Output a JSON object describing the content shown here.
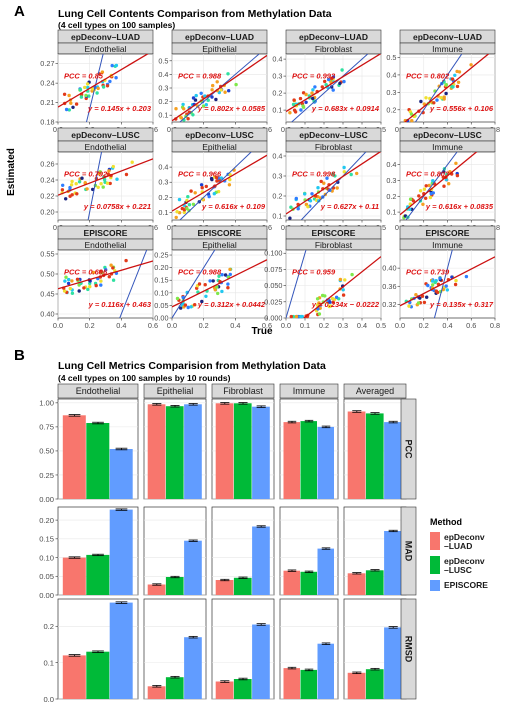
{
  "panel_a": {
    "letter": "A",
    "title": "Lung Cell Contents Comparison from Methylation Data",
    "subtitle": "(4 cell types on 100 samples)",
    "xlabel": "True",
    "ylabel": "Estimated"
  },
  "panel_b": {
    "letter": "B",
    "title": "Lung Cell Metrics Comparision from Methylation Data",
    "subtitle": "(4 cell types on 100 samples by 10 rounds)",
    "legend_title": "Method",
    "legend": [
      {
        "lines": [
          "epDeconv",
          "–LUAD"
        ],
        "color": "#F8766D"
      },
      {
        "lines": [
          "epDeconv",
          "–LUSC"
        ],
        "color": "#00BA38"
      },
      {
        "lines": [
          "EPISCORE"
        ],
        "color": "#619CFF"
      }
    ]
  },
  "colors": {
    "fit_line": "#CC1111",
    "identity_line": "#3355BB",
    "strip_bg": "#D9D9D9",
    "annotation": "#DD1111"
  },
  "chart_data": [
    {
      "type": "scatter",
      "title": "Lung Cell Contents Comparison from Methylation Data",
      "xlabel": "True",
      "ylabel": "Estimated",
      "methods": [
        "epDeconv–LUAD",
        "epDeconv–LUSC",
        "EPISCORE"
      ],
      "cells": [
        "Endothelial",
        "Epithelial",
        "Fibroblast",
        "Immune"
      ],
      "facets": [
        [
          {
            "xlim": [
              0,
              0.6
            ],
            "xticks": [
              "0.0",
              "0.2",
              "0.4",
              "0.6"
            ],
            "ylim": [
              0.18,
              0.285
            ],
            "yticks": [
              "0.18",
              "0.21",
              "0.24",
              "0.27"
            ],
            "pcc": "PCC = 0.85",
            "eq": "y = 0.145x + 0.203",
            "slope": 0.145,
            "intercept": 0.203
          },
          {
            "xlim": [
              0,
              0.6
            ],
            "xticks": [
              "0.0",
              "0.2",
              "0.4",
              "0.6"
            ],
            "ylim": [
              0.05,
              0.55
            ],
            "yticks": [
              "0.1",
              "0.2",
              "0.3",
              "0.4",
              "0.5"
            ],
            "pcc": "PCC = 0.988",
            "eq": "y = 0.802x + 0.0585",
            "slope": 0.802,
            "intercept": 0.0585
          },
          {
            "xlim": [
              0,
              0.5
            ],
            "xticks": [
              "0.0",
              "0.1",
              "0.2",
              "0.3",
              "0.4",
              "0.5"
            ],
            "ylim": [
              0.03,
              0.43
            ],
            "yticks": [
              "0.1",
              "0.2",
              "0.3",
              "0.4"
            ],
            "pcc": "PCC = 0.992",
            "eq": "y = 0.683x + 0.0914",
            "slope": 0.683,
            "intercept": 0.0914
          },
          {
            "xlim": [
              0,
              0.8
            ],
            "xticks": [
              "0.0",
              "0.2",
              "0.4",
              "0.6",
              "0.8"
            ],
            "ylim": [
              0.13,
              0.52
            ],
            "yticks": [
              "0.2",
              "0.3",
              "0.4",
              "0.5"
            ],
            "pcc": "PCC = 0.802",
            "eq": "y = 0.556x + 0.106",
            "slope": 0.556,
            "intercept": 0.106
          }
        ],
        [
          {
            "xlim": [
              0,
              0.6
            ],
            "xticks": [
              "0.0",
              "0.2",
              "0.4",
              "0.6"
            ],
            "ylim": [
              0.19,
              0.275
            ],
            "yticks": [
              "0.20",
              "0.22",
              "0.24",
              "0.26"
            ],
            "pcc": "PCC = 0.792",
            "eq": "y = 0.0758x + 0.221",
            "slope": 0.0758,
            "intercept": 0.221
          },
          {
            "xlim": [
              0,
              0.6
            ],
            "xticks": [
              "0.0",
              "0.2",
              "0.4",
              "0.6"
            ],
            "ylim": [
              0.05,
              0.5
            ],
            "yticks": [
              "0.1",
              "0.2",
              "0.3",
              "0.4"
            ],
            "pcc": "PCC = 0.966",
            "eq": "y = 0.616x + 0.109",
            "slope": 0.616,
            "intercept": 0.109
          },
          {
            "xlim": [
              0,
              0.5
            ],
            "xticks": [
              "0.0",
              "0.1",
              "0.2",
              "0.3",
              "0.4",
              "0.5"
            ],
            "ylim": [
              0.08,
              0.42
            ],
            "yticks": [
              "0.1",
              "0.2",
              "0.3",
              "0.4"
            ],
            "pcc": "PCC = 0.998",
            "eq": "y = 0.627x + 0.11",
            "slope": 0.627,
            "intercept": 0.11
          },
          {
            "xlim": [
              0,
              0.8
            ],
            "xticks": [
              "0.0",
              "0.2",
              "0.4",
              "0.6",
              "0.8"
            ],
            "ylim": [
              0.05,
              0.48
            ],
            "yticks": [
              "0.1",
              "0.2",
              "0.3",
              "0.4"
            ],
            "pcc": "PCC = 0.803",
            "eq": "y = 0.616x + 0.0835",
            "slope": 0.616,
            "intercept": 0.0835
          }
        ],
        [
          {
            "xlim": [
              0,
              0.6
            ],
            "xticks": [
              "0.0",
              "0.2",
              "0.4",
              "0.6"
            ],
            "ylim": [
              0.39,
              0.56
            ],
            "yticks": [
              "0.40",
              "0.45",
              "0.50",
              "0.55"
            ],
            "pcc": "PCC = 0.606",
            "eq": "y = 0.116x + 0.463",
            "slope": 0.116,
            "intercept": 0.463
          },
          {
            "xlim": [
              0,
              0.6
            ],
            "xticks": [
              "0.0",
              "0.2",
              "0.4",
              "0.6"
            ],
            "ylim": [
              0.0,
              0.27
            ],
            "yticks": [
              "0.00",
              "0.05",
              "0.10",
              "0.15",
              "0.20",
              "0.25"
            ],
            "pcc": "PCC = 0.988",
            "eq": "y = 0.312x + 0.0442",
            "slope": 0.312,
            "intercept": 0.0442
          },
          {
            "xlim": [
              0,
              0.5
            ],
            "xticks": [
              "0.0",
              "0.1",
              "0.2",
              "0.3",
              "0.4",
              "0.5"
            ],
            "ylim": [
              0.0,
              0.105
            ],
            "yticks": [
              "0.000",
              "0.025",
              "0.050",
              "0.075",
              "0.100"
            ],
            "pcc": "PCC = 0.959",
            "eq": "y = 0.234x − 0.0222",
            "slope": 0.234,
            "intercept": -0.0222
          },
          {
            "xlim": [
              0,
              0.8
            ],
            "xticks": [
              "0.0",
              "0.2",
              "0.4",
              "0.6",
              "0.8"
            ],
            "ylim": [
              0.29,
              0.44
            ],
            "yticks": [
              "0.32",
              "0.36",
              "0.40"
            ],
            "pcc": "PCC = 0.739",
            "eq": "y = 0.135x + 0.317",
            "slope": 0.135,
            "intercept": 0.317
          }
        ]
      ]
    },
    {
      "type": "bar",
      "title": "Lung Cell Metrics Comparision from Methylation Data",
      "categories": [
        "Endothelial",
        "Epithelial",
        "Fibroblast",
        "Immune",
        "Averaged"
      ],
      "metrics": [
        {
          "name": "PCC",
          "ylim": [
            0,
            1.04
          ],
          "yticks": [
            0,
            0.25,
            0.5,
            0.75,
            1
          ],
          "ytick_labels": [
            "0.00",
            "0.25",
            "0.50",
            "0.75",
            "1.00"
          ],
          "series": [
            {
              "name": "epDeconv–LUAD",
              "values": [
                0.87,
                0.985,
                0.995,
                0.8,
                0.91
              ]
            },
            {
              "name": "epDeconv–LUSC",
              "values": [
                0.79,
                0.965,
                0.995,
                0.81,
                0.89
              ]
            },
            {
              "name": "EPISCORE",
              "values": [
                0.52,
                0.985,
                0.96,
                0.75,
                0.8
              ]
            }
          ]
        },
        {
          "name": "MAD",
          "ylim": [
            0,
            0.235
          ],
          "yticks": [
            0,
            0.05,
            0.1,
            0.15,
            0.2
          ],
          "ytick_labels": [
            "0.00",
            "0.05",
            "0.10",
            "0.15",
            "0.20"
          ],
          "series": [
            {
              "name": "epDeconv–LUAD",
              "values": [
                0.1,
                0.028,
                0.04,
                0.065,
                0.058
              ]
            },
            {
              "name": "epDeconv–LUSC",
              "values": [
                0.107,
                0.048,
                0.046,
                0.062,
                0.066
              ]
            },
            {
              "name": "EPISCORE",
              "values": [
                0.228,
                0.145,
                0.183,
                0.124,
                0.171
              ]
            }
          ]
        },
        {
          "name": "RMSD",
          "ylim": [
            0,
            0.275
          ],
          "yticks": [
            0,
            0.1,
            0.2
          ],
          "ytick_labels": [
            "0.0",
            "0.1",
            "0.2"
          ],
          "series": [
            {
              "name": "epDeconv–LUAD",
              "values": [
                0.12,
                0.035,
                0.048,
                0.085,
                0.072
              ]
            },
            {
              "name": "epDeconv–LUSC",
              "values": [
                0.13,
                0.06,
                0.055,
                0.08,
                0.082
              ]
            },
            {
              "name": "EPISCORE",
              "values": [
                0.265,
                0.17,
                0.205,
                0.152,
                0.197
              ]
            }
          ]
        }
      ]
    }
  ]
}
